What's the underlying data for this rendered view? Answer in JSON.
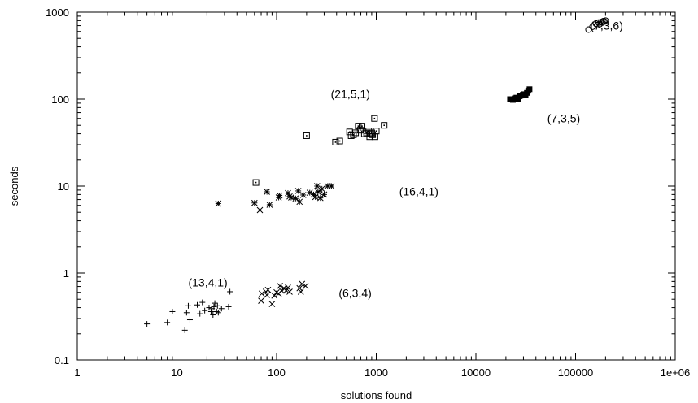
{
  "chart_data": {
    "type": "scatter",
    "title": "",
    "xlabel": "solutions found",
    "ylabel": "seconds",
    "xscale": "log",
    "yscale": "log",
    "xlim": [
      1,
      1000000
    ],
    "ylim": [
      0.1,
      1000
    ],
    "grid": false,
    "legend": "none",
    "x_ticks": [
      {
        "value": 1,
        "label": "1"
      },
      {
        "value": 10,
        "label": "10"
      },
      {
        "value": 100,
        "label": "100"
      },
      {
        "value": 1000,
        "label": "1000"
      },
      {
        "value": 10000,
        "label": "10000"
      },
      {
        "value": 100000,
        "label": "100000"
      },
      {
        "value": 1000000,
        "label": "1e+06"
      }
    ],
    "y_ticks": [
      {
        "value": 0.1,
        "label": "0.1"
      },
      {
        "value": 1,
        "label": "1"
      },
      {
        "value": 10,
        "label": "10"
      },
      {
        "value": 100,
        "label": "100"
      },
      {
        "value": 1000,
        "label": "1000"
      }
    ],
    "series": [
      {
        "label": "(13,4,1)",
        "marker": "plus",
        "label_at": [
          13,
          0.78
        ],
        "points": [
          [
            5,
            0.26
          ],
          [
            8,
            0.27
          ],
          [
            9,
            0.36
          ],
          [
            12,
            0.22
          ],
          [
            12.5,
            0.35
          ],
          [
            13,
            0.42
          ],
          [
            13.5,
            0.29
          ],
          [
            16,
            0.43
          ],
          [
            17,
            0.34
          ],
          [
            18,
            0.46
          ],
          [
            19,
            0.37
          ],
          [
            21,
            0.4
          ],
          [
            22,
            0.36
          ],
          [
            22.5,
            0.39
          ],
          [
            23,
            0.33
          ],
          [
            23.5,
            0.41
          ],
          [
            24,
            0.45
          ],
          [
            25,
            0.36
          ],
          [
            25.5,
            0.42
          ],
          [
            26,
            0.35
          ],
          [
            28,
            0.39
          ],
          [
            33,
            0.41
          ],
          [
            34,
            0.61
          ]
        ]
      },
      {
        "label": "(6,3,4)",
        "marker": "cross",
        "label_at": [
          420,
          0.59
        ],
        "points": [
          [
            70,
            0.48
          ],
          [
            71,
            0.58
          ],
          [
            78,
            0.61
          ],
          [
            80,
            0.56
          ],
          [
            82,
            0.64
          ],
          [
            90,
            0.44
          ],
          [
            95,
            0.55
          ],
          [
            100,
            0.6
          ],
          [
            105,
            0.58
          ],
          [
            108,
            0.71
          ],
          [
            112,
            0.63
          ],
          [
            118,
            0.67
          ],
          [
            120,
            0.66
          ],
          [
            125,
            0.63
          ],
          [
            130,
            0.68
          ],
          [
            135,
            0.61
          ],
          [
            170,
            0.67
          ],
          [
            175,
            0.61
          ],
          [
            180,
            0.75
          ],
          [
            195,
            0.71
          ]
        ]
      },
      {
        "label": "(16,4,1)",
        "marker": "star",
        "label_at": [
          1700,
          8.7
        ],
        "points": [
          [
            26,
            6.3
          ],
          [
            60,
            6.4
          ],
          [
            68,
            5.3
          ],
          [
            80,
            8.6
          ],
          [
            85,
            6.1
          ],
          [
            105,
            7.4
          ],
          [
            107,
            7.8
          ],
          [
            130,
            8.3
          ],
          [
            135,
            7.6
          ],
          [
            140,
            7.4
          ],
          [
            155,
            7.2
          ],
          [
            165,
            8.8
          ],
          [
            170,
            6.6
          ],
          [
            185,
            7.9
          ],
          [
            215,
            8.4
          ],
          [
            235,
            8.0
          ],
          [
            245,
            7.5
          ],
          [
            255,
            10
          ],
          [
            260,
            8.6
          ],
          [
            275,
            7.3
          ],
          [
            285,
            9.3
          ],
          [
            300,
            8.0
          ],
          [
            325,
            10
          ],
          [
            355,
            10
          ]
        ]
      },
      {
        "label": "(21,5,1)",
        "marker": "square-dot",
        "label_at": [
          350,
          115
        ],
        "points": [
          [
            62,
            11
          ],
          [
            200,
            38
          ],
          [
            390,
            32
          ],
          [
            430,
            33
          ],
          [
            540,
            42
          ],
          [
            560,
            38
          ],
          [
            590,
            39
          ],
          [
            620,
            41
          ],
          [
            660,
            49
          ],
          [
            690,
            44
          ],
          [
            720,
            49
          ],
          [
            760,
            40
          ],
          [
            800,
            41
          ],
          [
            840,
            43
          ],
          [
            860,
            37
          ],
          [
            880,
            40
          ],
          [
            900,
            41
          ],
          [
            920,
            39
          ],
          [
            960,
            60
          ],
          [
            970,
            37
          ],
          [
            1000,
            43
          ],
          [
            1200,
            50
          ]
        ]
      },
      {
        "label": "(7,3,6)",
        "marker": "circle",
        "label_at": [
          140000,
          700
        ],
        "points": [
          [
            135000,
            630
          ],
          [
            148000,
            680
          ],
          [
            160000,
            740
          ],
          [
            165000,
            710
          ],
          [
            170000,
            760
          ],
          [
            175000,
            730
          ],
          [
            180000,
            770
          ],
          [
            185000,
            760
          ],
          [
            190000,
            790
          ],
          [
            195000,
            780
          ],
          [
            200000,
            800
          ]
        ]
      },
      {
        "label": "(7,3,5)",
        "marker": "filled-square",
        "label_at": [
          52000,
          60
        ],
        "points": [
          [
            22000,
            100
          ],
          [
            23500,
            98
          ],
          [
            24500,
            102
          ],
          [
            25500,
            104
          ],
          [
            26500,
            100
          ],
          [
            27500,
            108
          ],
          [
            28500,
            110
          ],
          [
            29500,
            112
          ],
          [
            30500,
            114
          ],
          [
            31500,
            112
          ],
          [
            32500,
            118
          ],
          [
            33500,
            125
          ],
          [
            34500,
            130
          ]
        ]
      }
    ]
  }
}
